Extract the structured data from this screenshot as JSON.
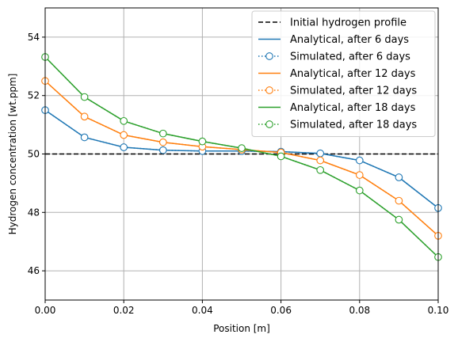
{
  "chart_data": {
    "type": "line",
    "xlabel": "Position [m]",
    "ylabel": "Hydrogen concentration [wt.ppm]",
    "xlim": [
      0.0,
      0.1
    ],
    "ylim": [
      45.0,
      55.0
    ],
    "xticks": [
      0.0,
      0.02,
      0.04,
      0.06,
      0.08,
      0.1
    ],
    "xtick_labels": [
      "0.00",
      "0.02",
      "0.04",
      "0.06",
      "0.08",
      "0.10"
    ],
    "yticks": [
      46,
      48,
      50,
      52,
      54
    ],
    "ytick_labels": [
      "46",
      "48",
      "50",
      "52",
      "54"
    ],
    "grid": true,
    "legend_position": "top-right",
    "colors": {
      "initial": "#000000",
      "day6": "#1f77b4",
      "day12": "#ff7f0e",
      "day18": "#2ca02c",
      "grid": "#b0b0b0"
    },
    "x": [
      0.0,
      0.01,
      0.02,
      0.03,
      0.04,
      0.05,
      0.06,
      0.07,
      0.08,
      0.09,
      0.1
    ],
    "series": [
      {
        "name": "Initial hydrogen profile",
        "style": "dashed",
        "color_key": "initial",
        "values": [
          50,
          50,
          50,
          50,
          50,
          50,
          50,
          50,
          50,
          50,
          50
        ]
      },
      {
        "name": "Analytical, after 6 days",
        "style": "solid",
        "color_key": "day6",
        "values": [
          51.5,
          50.57,
          50.23,
          50.13,
          50.1,
          50.1,
          50.08,
          50.02,
          49.78,
          49.2,
          48.15
        ]
      },
      {
        "name": "Simulated, after 6 days",
        "style": "dotted-markers",
        "color_key": "day6",
        "values": [
          51.5,
          50.57,
          50.23,
          50.13,
          50.1,
          50.1,
          50.08,
          50.02,
          49.78,
          49.2,
          48.15
        ]
      },
      {
        "name": "Analytical, after 12 days",
        "style": "solid",
        "color_key": "day12",
        "values": [
          52.5,
          51.28,
          50.65,
          50.4,
          50.25,
          50.15,
          50.05,
          49.78,
          49.28,
          48.4,
          47.2
        ]
      },
      {
        "name": "Simulated, after 12 days",
        "style": "dotted-markers",
        "color_key": "day12",
        "values": [
          52.5,
          51.28,
          50.65,
          50.4,
          50.25,
          50.15,
          50.05,
          49.78,
          49.28,
          48.4,
          47.2
        ]
      },
      {
        "name": "Analytical, after 18 days",
        "style": "solid",
        "color_key": "day18",
        "values": [
          53.32,
          51.95,
          51.13,
          50.7,
          50.43,
          50.2,
          49.92,
          49.45,
          48.75,
          47.75,
          46.47
        ]
      },
      {
        "name": "Simulated, after 18 days",
        "style": "dotted-markers",
        "color_key": "day18",
        "values": [
          53.32,
          51.95,
          51.13,
          50.7,
          50.43,
          50.2,
          49.92,
          49.45,
          48.75,
          47.75,
          46.47
        ]
      }
    ]
  }
}
